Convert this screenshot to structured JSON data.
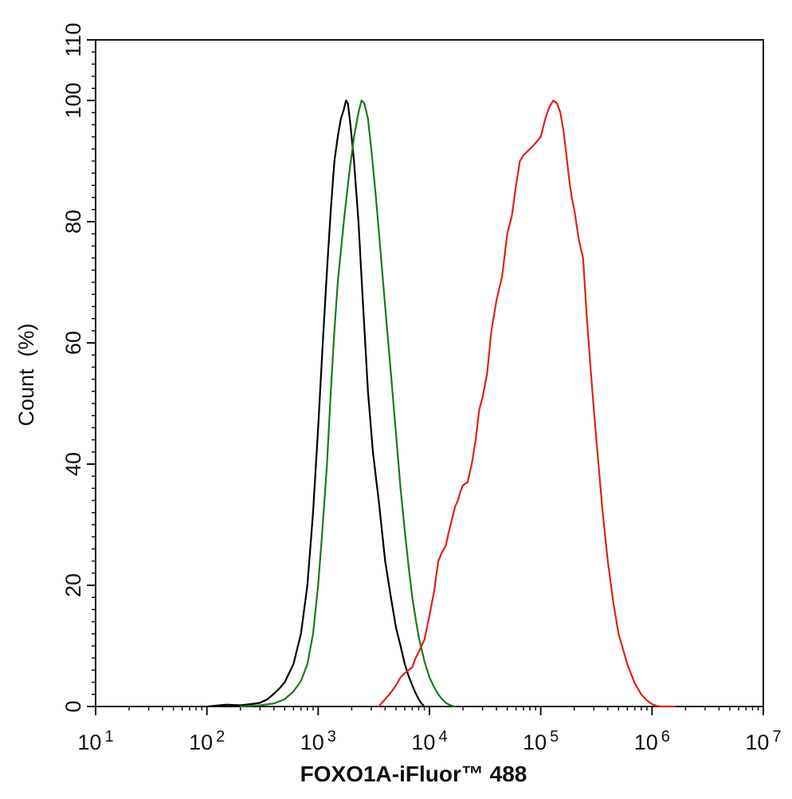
{
  "chart_data": {
    "type": "line",
    "title": "",
    "xlabel": "FOXO1A-iFluor™ 488",
    "ylabel": "Count  (%)",
    "x_scale": "log",
    "xlim": [
      10,
      10000000
    ],
    "ylim": [
      0,
      110
    ],
    "grid": false,
    "legend": "none",
    "x_ticks": [
      {
        "base": "10",
        "exp": "1",
        "value": 10
      },
      {
        "base": "10",
        "exp": "2",
        "value": 100
      },
      {
        "base": "10",
        "exp": "3",
        "value": 1000
      },
      {
        "base": "10",
        "exp": "4",
        "value": 10000
      },
      {
        "base": "10",
        "exp": "5",
        "value": 100000
      },
      {
        "base": "10",
        "exp": "6",
        "value": 1000000
      },
      {
        "base": "10",
        "exp": "7",
        "value": 10000000
      }
    ],
    "y_ticks": [
      "0",
      "20",
      "40",
      "60",
      "80",
      "100",
      "110"
    ],
    "series": [
      {
        "color": "#000000",
        "x": [
          100,
          150,
          200,
          250,
          300,
          350,
          400,
          450,
          500,
          600,
          700,
          800,
          900,
          1000,
          1100,
          1200,
          1300,
          1400,
          1500,
          1600,
          1700,
          1780,
          1850,
          1950,
          2100,
          2300,
          2500,
          2800,
          3100,
          3500,
          4000,
          4500,
          5000,
          5500,
          6000,
          6500,
          7000,
          7500,
          8000,
          8500,
          9000
        ],
        "y": [
          0,
          0.3,
          0.2,
          0.4,
          0.6,
          1.2,
          2.1,
          3,
          4,
          7,
          12,
          20,
          32,
          46,
          60,
          72,
          82,
          90,
          94,
          97,
          98.5,
          100,
          99.5,
          96,
          90,
          80,
          68,
          52,
          42,
          34,
          24,
          18,
          13,
          10,
          7,
          5,
          3.5,
          2.2,
          1.2,
          0.5,
          0
        ]
      },
      {
        "color": "#1a7a1a",
        "x": [
          200,
          300,
          400,
          500,
          600,
          700,
          800,
          900,
          1000,
          1100,
          1200,
          1300,
          1400,
          1500,
          1700,
          1900,
          2100,
          2300,
          2450,
          2600,
          2800,
          3000,
          3300,
          3600,
          4000,
          4500,
          5000,
          5500,
          6000,
          6500,
          7000,
          7500,
          8000,
          9000,
          10000,
          11000,
          12000,
          13000,
          14000,
          15000,
          16000,
          17000
        ],
        "y": [
          0,
          0.2,
          0.5,
          1.2,
          2.5,
          4.2,
          7,
          12,
          20,
          30,
          40,
          52,
          62,
          70,
          80,
          88,
          94,
          98,
          100,
          99.5,
          97,
          92,
          84,
          76,
          66,
          55,
          45,
          36,
          29,
          23,
          18,
          14.5,
          11.5,
          7.5,
          4.8,
          3.2,
          2,
          1.2,
          0.6,
          0.3,
          0.1,
          0
        ]
      },
      {
        "color": "#e0201c",
        "x": [
          3500,
          4000,
          4500,
          5000,
          5500,
          6000,
          6500,
          7000,
          7500,
          8000,
          9000,
          10000,
          11000,
          12000,
          13000,
          14000,
          15000,
          16000,
          17000,
          18000,
          19000,
          20000,
          22000,
          24000,
          26000,
          28000,
          30000,
          33000,
          36000,
          40000,
          45000,
          50000,
          55000,
          60000,
          65000,
          70000,
          75000,
          80000,
          90000,
          100000,
          110000,
          120000,
          130000,
          140000,
          150000,
          160000,
          170000,
          180000,
          190000,
          200000,
          220000,
          240000,
          260000,
          280000,
          300000,
          330000,
          360000,
          400000,
          450000,
          500000,
          600000,
          700000,
          800000,
          900000,
          1000000,
          1100000,
          1200000,
          1300000,
          1400000,
          1500000,
          1600000
        ],
        "y": [
          0,
          1.2,
          2.3,
          3.5,
          4.8,
          5.5,
          6,
          6.5,
          8,
          9,
          11,
          15,
          19,
          24,
          25.5,
          26.5,
          29,
          31,
          33,
          34,
          35.5,
          36.5,
          37,
          40,
          44,
          49,
          51,
          55,
          62,
          67,
          71,
          78,
          81,
          86,
          90,
          91,
          91.5,
          92,
          93,
          94,
          97,
          99,
          100,
          99.5,
          98,
          95,
          91,
          87,
          84,
          82,
          77,
          74,
          64,
          56,
          49,
          40,
          32,
          24,
          17,
          12,
          7,
          3.8,
          2,
          1,
          0.4,
          0.1,
          0,
          0,
          0,
          0,
          0
        ]
      }
    ]
  }
}
